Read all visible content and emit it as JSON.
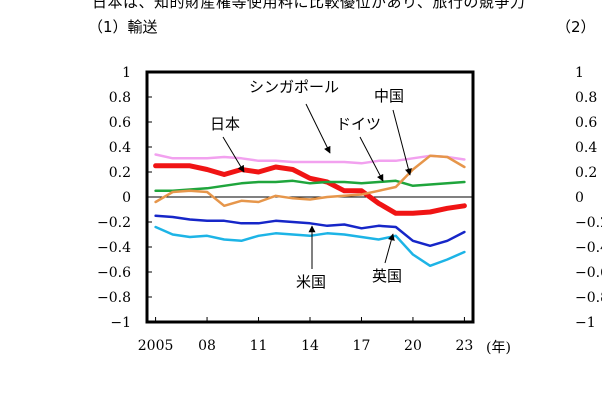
{
  "header": {
    "title": "日本は、知的財産権等使用料に比較優位があり、旅行の競争力",
    "panel1_label": "（1）輸送",
    "panel2_label": "（2）"
  },
  "chart_data": {
    "type": "line",
    "title": "",
    "xlabel": "(年)",
    "ylabel": "",
    "x": [
      2005,
      2006,
      2007,
      2008,
      2009,
      2010,
      2011,
      2012,
      2013,
      2014,
      2015,
      2016,
      2017,
      2018,
      2019,
      2020,
      2021,
      2022,
      2023
    ],
    "x_tick_labels": [
      "2005",
      "08",
      "11",
      "14",
      "17",
      "20",
      "23"
    ],
    "x_tick_values": [
      2005,
      2008,
      2011,
      2014,
      2017,
      2020,
      2023
    ],
    "xlim": [
      2004.5,
      2023.5
    ],
    "ylim": [
      -1,
      1
    ],
    "y_tick_labels": [
      "1",
      "0.8",
      "0.6",
      "0.4",
      "0.2",
      "0",
      "−0.2",
      "−0.4",
      "−0.6",
      "−0.8",
      "−1"
    ],
    "y_tick_values": [
      1,
      0.8,
      0.6,
      0.4,
      0.2,
      0,
      -0.2,
      -0.4,
      -0.6,
      -0.8,
      -1
    ],
    "series": [
      {
        "name": "シンガポール",
        "color": "#f2a1ef",
        "width": 2.5,
        "values": [
          0.34,
          0.31,
          0.31,
          0.31,
          0.32,
          0.31,
          0.29,
          0.29,
          0.28,
          0.28,
          0.28,
          0.28,
          0.27,
          0.29,
          0.29,
          0.31,
          0.33,
          0.32,
          0.3
        ]
      },
      {
        "name": "日本",
        "color": "#f01414",
        "width": 5,
        "values": [
          0.25,
          0.25,
          0.25,
          0.22,
          0.18,
          0.22,
          0.2,
          0.24,
          0.22,
          0.15,
          0.12,
          0.05,
          0.05,
          -0.05,
          -0.13,
          -0.13,
          -0.12,
          -0.09,
          -0.07
        ]
      },
      {
        "name": "ドイツ",
        "color": "#1fa53c",
        "width": 2.5,
        "values": [
          0.05,
          0.05,
          0.06,
          0.07,
          0.09,
          0.11,
          0.12,
          0.12,
          0.13,
          0.11,
          0.12,
          0.12,
          0.11,
          0.12,
          0.13,
          0.09,
          0.1,
          0.11,
          0.12
        ]
      },
      {
        "name": "中国",
        "color": "#e6964b",
        "width": 2.5,
        "values": [
          -0.04,
          0.04,
          0.05,
          0.04,
          -0.07,
          -0.03,
          -0.04,
          0.01,
          -0.01,
          -0.02,
          0.0,
          0.01,
          0.02,
          0.05,
          0.08,
          0.22,
          0.33,
          0.32,
          0.24
        ]
      },
      {
        "name": "米国",
        "color": "#1626c8",
        "width": 2.5,
        "values": [
          -0.15,
          -0.16,
          -0.18,
          -0.19,
          -0.19,
          -0.21,
          -0.21,
          -0.19,
          -0.2,
          -0.21,
          -0.23,
          -0.22,
          -0.25,
          -0.23,
          -0.24,
          -0.35,
          -0.39,
          -0.35,
          -0.28
        ]
      },
      {
        "name": "英国",
        "color": "#1db4e6",
        "width": 2.5,
        "values": [
          -0.24,
          -0.3,
          -0.32,
          -0.31,
          -0.34,
          -0.35,
          -0.31,
          -0.29,
          -0.3,
          -0.31,
          -0.29,
          -0.3,
          -0.32,
          -0.34,
          -0.31,
          -0.46,
          -0.55,
          -0.5,
          -0.44
        ]
      }
    ],
    "annotations": [
      {
        "label": "シンガポール",
        "target_series": "シンガポール"
      },
      {
        "label": "中国",
        "target_series": "中国"
      },
      {
        "label": "日本",
        "target_series": "日本"
      },
      {
        "label": "ドイツ",
        "target_series": "ドイツ"
      },
      {
        "label": "米国",
        "target_series": "米国"
      },
      {
        "label": "英国",
        "target_series": "英国"
      }
    ]
  }
}
